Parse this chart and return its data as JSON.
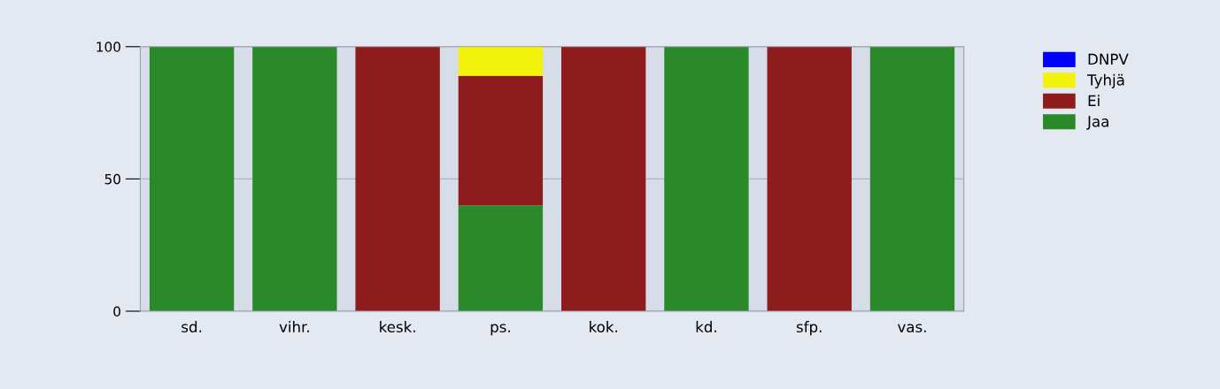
{
  "chart_data": {
    "type": "bar",
    "stacked": true,
    "categories": [
      "sd.",
      "vihr.",
      "kesk.",
      "ps.",
      "kok.",
      "kd.",
      "sfp.",
      "vas."
    ],
    "series": [
      {
        "name": "Jaa",
        "color": "#2a8a2a",
        "values": [
          100,
          100,
          0,
          40,
          0,
          100,
          0,
          100
        ]
      },
      {
        "name": "Ei",
        "color": "#8e1c1c",
        "values": [
          0,
          0,
          100,
          49,
          100,
          0,
          100,
          0
        ]
      },
      {
        "name": "Tyhjä",
        "color": "#f2f20a",
        "values": [
          0,
          0,
          0,
          11,
          0,
          0,
          0,
          0
        ]
      },
      {
        "name": "DNPV",
        "color": "#0000ff",
        "values": [
          0,
          0,
          0,
          0,
          0,
          0,
          0,
          0
        ]
      }
    ],
    "ylim": [
      0,
      100
    ],
    "yticks": [
      0,
      50,
      100
    ],
    "grid": "y",
    "legend": "top right"
  }
}
